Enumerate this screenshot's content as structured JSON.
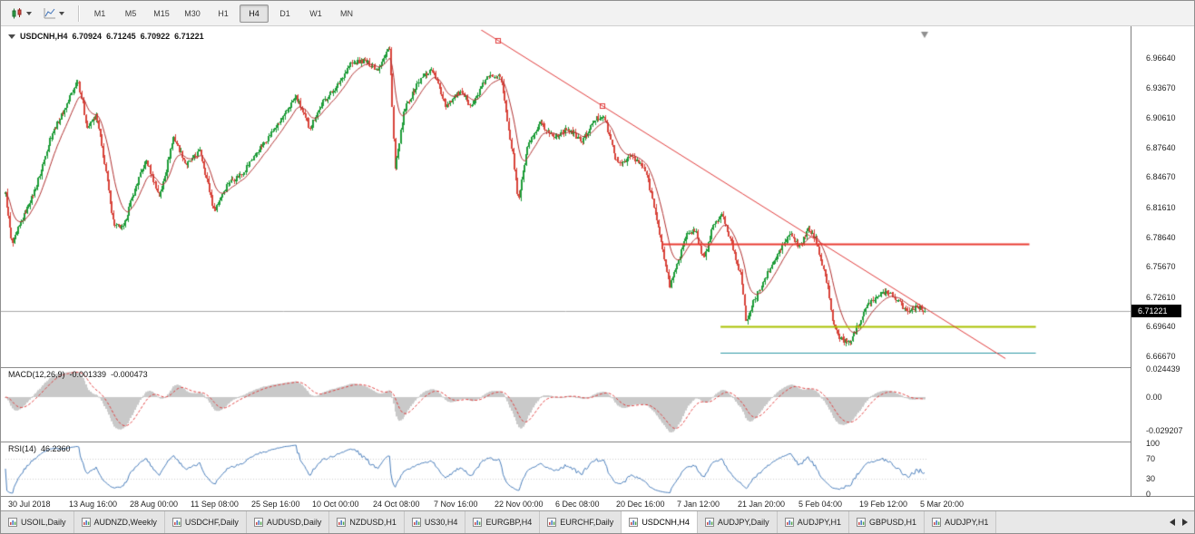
{
  "colors": {
    "up_candle": "#1f9d3a",
    "down_candle": "#d8453c",
    "ma_line": "#b03030",
    "trend_line": "#e03c3c",
    "hline_red": "#e83a30",
    "hline_olive": "#a8c000",
    "hline_teal": "#2e9aa6",
    "macd_hist": "#c9c9c9",
    "macd_signal": "#e03c3c",
    "rsi_line": "#4a7ebb",
    "rsi_levels": "#cfcfcf",
    "price_line": "#a8a8a8",
    "tag_bg": "#000000",
    "tag_text": "#ffffff",
    "shift_marker": "#8f8f8f"
  },
  "icons": {
    "chart_type_dropdown": "candlestick-chart",
    "template_dropdown": "line-chart",
    "dropdown_caret": "triangle-down",
    "chart_collapse": "triangle-down",
    "chart_shift_marker": "triangle-down",
    "tab_chart_icon": "mini-bar-chart",
    "tab_scroll_left": "triangle-left",
    "tab_scroll_right": "triangle-right"
  },
  "toolbar": {
    "timeframes": [
      "M1",
      "M5",
      "M15",
      "M30",
      "H1",
      "H4",
      "D1",
      "W1",
      "MN"
    ],
    "active_timeframe": "H4"
  },
  "chart": {
    "symbol_period": "USDCNH,H4",
    "ohlc": {
      "open": "6.70924",
      "high": "6.71245",
      "low": "6.70922",
      "close": "6.71221"
    },
    "price_tag": "6.71221"
  },
  "indicators": {
    "macd": {
      "name": "MACD(12,26,9)",
      "value_main": "-0.001339",
      "value_signal": "-0.000473"
    },
    "rsi": {
      "name": "RSI(14)",
      "value": "46.2360"
    }
  },
  "tabs": {
    "items": [
      "USOIL,Daily",
      "AUDNZD,Weekly",
      "USDCHF,Daily",
      "AUDUSD,Daily",
      "NZDUSD,H1",
      "US30,H4",
      "EURGBP,H4",
      "EURCHF,Daily",
      "USDCNH,H4",
      "AUDJPY,Daily",
      "AUDJPY,H1",
      "GBPUSD,H1",
      "AUDJPY,H1"
    ],
    "active_index": 8
  },
  "chart_data": {
    "type": "candlestick",
    "symbol": "USDCNH",
    "timeframe": "H4",
    "current_price": 6.71221,
    "last_close": 6.71221,
    "price_axis": [
      "6.96640",
      "6.93670",
      "6.90610",
      "6.87640",
      "6.84670",
      "6.81610",
      "6.78640",
      "6.75670",
      "6.72610",
      "6.69640",
      "6.66670"
    ],
    "macd_axis": [
      "0.024439",
      "0.00",
      "-0.029207"
    ],
    "rsi_axis": [
      "100",
      "70",
      "30",
      "0"
    ],
    "x_labels": [
      "30 Jul 2018",
      "13 Aug 16:00",
      "28 Aug 00:00",
      "11 Sep 08:00",
      "25 Sep 16:00",
      "10 Oct 00:00",
      "24 Oct 08:00",
      "7 Nov 16:00",
      "22 Nov 00:00",
      "6 Dec 08:00",
      "20 Dec 16:00",
      "7 Jan 12:00",
      "21 Jan 20:00",
      "5 Feb 04:00",
      "19 Feb 12:00",
      "5 Mar 20:00"
    ],
    "render_candles": 640,
    "noise": 0.005,
    "wick": 0.0035,
    "price_anchors": [
      [
        0.0,
        6.83
      ],
      [
        0.007,
        6.778
      ],
      [
        0.02,
        6.808
      ],
      [
        0.035,
        6.841
      ],
      [
        0.049,
        6.887
      ],
      [
        0.064,
        6.914
      ],
      [
        0.079,
        6.946
      ],
      [
        0.089,
        6.896
      ],
      [
        0.099,
        6.909
      ],
      [
        0.109,
        6.854
      ],
      [
        0.118,
        6.799
      ],
      [
        0.128,
        6.795
      ],
      [
        0.138,
        6.827
      ],
      [
        0.153,
        6.864
      ],
      [
        0.168,
        6.827
      ],
      [
        0.183,
        6.887
      ],
      [
        0.197,
        6.859
      ],
      [
        0.212,
        6.873
      ],
      [
        0.227,
        6.813
      ],
      [
        0.242,
        6.841
      ],
      [
        0.257,
        6.85
      ],
      [
        0.271,
        6.868
      ],
      [
        0.286,
        6.887
      ],
      [
        0.301,
        6.905
      ],
      [
        0.316,
        6.928
      ],
      [
        0.331,
        6.896
      ],
      [
        0.346,
        6.923
      ],
      [
        0.36,
        6.937
      ],
      [
        0.375,
        6.96
      ],
      [
        0.39,
        6.964
      ],
      [
        0.405,
        6.955
      ],
      [
        0.418,
        6.978
      ],
      [
        0.424,
        6.854
      ],
      [
        0.434,
        6.914
      ],
      [
        0.449,
        6.942
      ],
      [
        0.464,
        6.956
      ],
      [
        0.479,
        6.919
      ],
      [
        0.494,
        6.932
      ],
      [
        0.508,
        6.919
      ],
      [
        0.523,
        6.946
      ],
      [
        0.538,
        6.951
      ],
      [
        0.553,
        6.864
      ],
      [
        0.558,
        6.822
      ],
      [
        0.568,
        6.877
      ],
      [
        0.582,
        6.9
      ],
      [
        0.597,
        6.887
      ],
      [
        0.612,
        6.896
      ],
      [
        0.627,
        6.882
      ],
      [
        0.642,
        6.905
      ],
      [
        0.651,
        6.909
      ],
      [
        0.666,
        6.859
      ],
      [
        0.681,
        6.868
      ],
      [
        0.696,
        6.854
      ],
      [
        0.706,
        6.818
      ],
      [
        0.714,
        6.778
      ],
      [
        0.723,
        6.737
      ],
      [
        0.73,
        6.758
      ],
      [
        0.74,
        6.786
      ],
      [
        0.75,
        6.795
      ],
      [
        0.76,
        6.763
      ],
      [
        0.77,
        6.799
      ],
      [
        0.78,
        6.808
      ],
      [
        0.79,
        6.781
      ],
      [
        0.8,
        6.749
      ],
      [
        0.806,
        6.703
      ],
      [
        0.814,
        6.721
      ],
      [
        0.824,
        6.74
      ],
      [
        0.834,
        6.758
      ],
      [
        0.844,
        6.776
      ],
      [
        0.854,
        6.79
      ],
      [
        0.864,
        6.776
      ],
      [
        0.874,
        6.795
      ],
      [
        0.883,
        6.781
      ],
      [
        0.893,
        6.744
      ],
      [
        0.901,
        6.698
      ],
      [
        0.908,
        6.685
      ],
      [
        0.918,
        6.68
      ],
      [
        0.928,
        6.698
      ],
      [
        0.938,
        6.721
      ],
      [
        0.948,
        6.725
      ],
      [
        0.958,
        6.732
      ],
      [
        0.967,
        6.727
      ],
      [
        0.982,
        6.712
      ],
      [
        0.992,
        6.717
      ],
      [
        1.0,
        6.7122
      ]
    ],
    "trendline": {
      "t1": 0.536,
      "price1": 6.984,
      "t2": 0.65,
      "price2": 6.918,
      "extend_to_t": 1.088
    },
    "hlines": [
      {
        "price": 6.78,
        "color_key": "hline_red",
        "width": 2,
        "t1": 0.714,
        "t2": 1.114
      },
      {
        "price": 6.6965,
        "color_key": "hline_olive",
        "width": 2,
        "t1": 0.778,
        "t2": 1.121
      },
      {
        "price": 6.67,
        "color_key": "hline_teal",
        "width": 1,
        "t1": 0.778,
        "t2": 1.121
      }
    ],
    "indicators": {
      "macd": {
        "fast": 12,
        "slow": 26,
        "signal": 9
      },
      "rsi": {
        "period": 14,
        "levels": [
          70,
          30
        ]
      },
      "ma": {
        "period": 13
      }
    }
  }
}
